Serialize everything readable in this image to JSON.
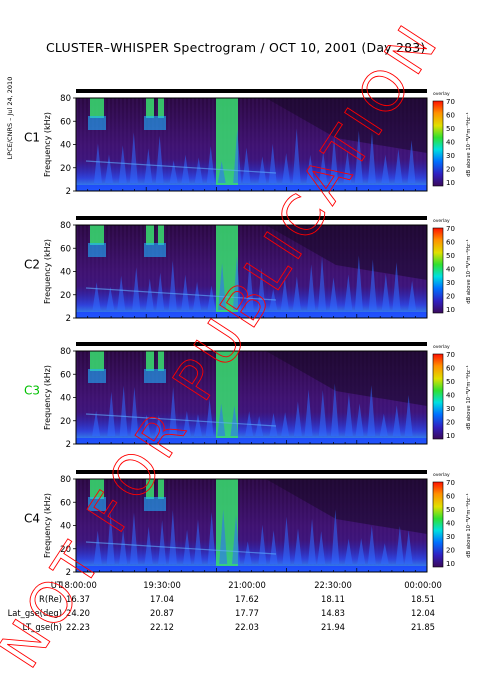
{
  "title": "CLUSTER–WHISPER Spectrogram / OCT 10, 2001 (Day 283)",
  "side_stamp": "LPCE/CNRS – Jul 24, 2010",
  "watermark": "NOT FOR PUBLICATION",
  "colors": {
    "c3_label": "#00c000",
    "watermark": "#ff0000",
    "background_spectrum": "#3a0d5c"
  },
  "chart_data": [
    {
      "type": "heatmap",
      "spacecraft": "C1",
      "ylabel": "Frequency (kHz)",
      "yticks": [
        "80",
        "60",
        "40",
        "20",
        "2"
      ],
      "ylim": [
        2,
        80
      ],
      "colorbar_label": "dB above 10⁻⁸V²m⁻²Hz⁻¹",
      "colorbar_ticks": [
        "70",
        "60",
        "50",
        "40",
        "30",
        "20",
        "10"
      ],
      "colorbar_header": "overlay"
    },
    {
      "type": "heatmap",
      "spacecraft": "C2",
      "ylabel": "Frequency (kHz)",
      "yticks": [
        "80",
        "60",
        "40",
        "20",
        "2"
      ],
      "ylim": [
        2,
        80
      ],
      "colorbar_label": "dB above 10⁻⁸V²m⁻²Hz⁻¹",
      "colorbar_ticks": [
        "70",
        "60",
        "50",
        "40",
        "30",
        "20",
        "10"
      ],
      "colorbar_header": "overlay"
    },
    {
      "type": "heatmap",
      "spacecraft": "C3",
      "ylabel": "Frequency (kHz)",
      "yticks": [
        "80",
        "60",
        "40",
        "20",
        "2"
      ],
      "ylim": [
        2,
        80
      ],
      "colorbar_label": "dB above 10⁻⁸V²m⁻²Hz⁻¹",
      "colorbar_ticks": [
        "70",
        "60",
        "50",
        "40",
        "30",
        "20",
        "10"
      ],
      "colorbar_header": "overlay"
    },
    {
      "type": "heatmap",
      "spacecraft": "C4",
      "ylabel": "Frequency (kHz)",
      "yticks": [
        "80",
        "60",
        "40",
        "20",
        "2"
      ],
      "ylim": [
        2,
        80
      ],
      "colorbar_label": "dB above 10⁻⁸V²m⁻²Hz⁻¹",
      "colorbar_ticks": [
        "70",
        "60",
        "50",
        "40",
        "30",
        "20",
        "10"
      ],
      "colorbar_header": "overlay"
    }
  ],
  "ephemeris": {
    "rows": [
      {
        "label": "UT",
        "values": [
          "18:00:00",
          "19:30:00",
          "21:00:00",
          "22:30:00",
          "00:00:00"
        ]
      },
      {
        "label": "R(Re)",
        "values": [
          "16.37",
          "17.04",
          "17.62",
          "18.11",
          "18.51"
        ]
      },
      {
        "label": "Lat_gse(deg)",
        "values": [
          "24.20",
          "20.87",
          "17.77",
          "14.83",
          "12.04"
        ]
      },
      {
        "label": "LT_gse(h)",
        "values": [
          "22.23",
          "22.12",
          "22.03",
          "21.94",
          "21.85"
        ]
      }
    ]
  }
}
